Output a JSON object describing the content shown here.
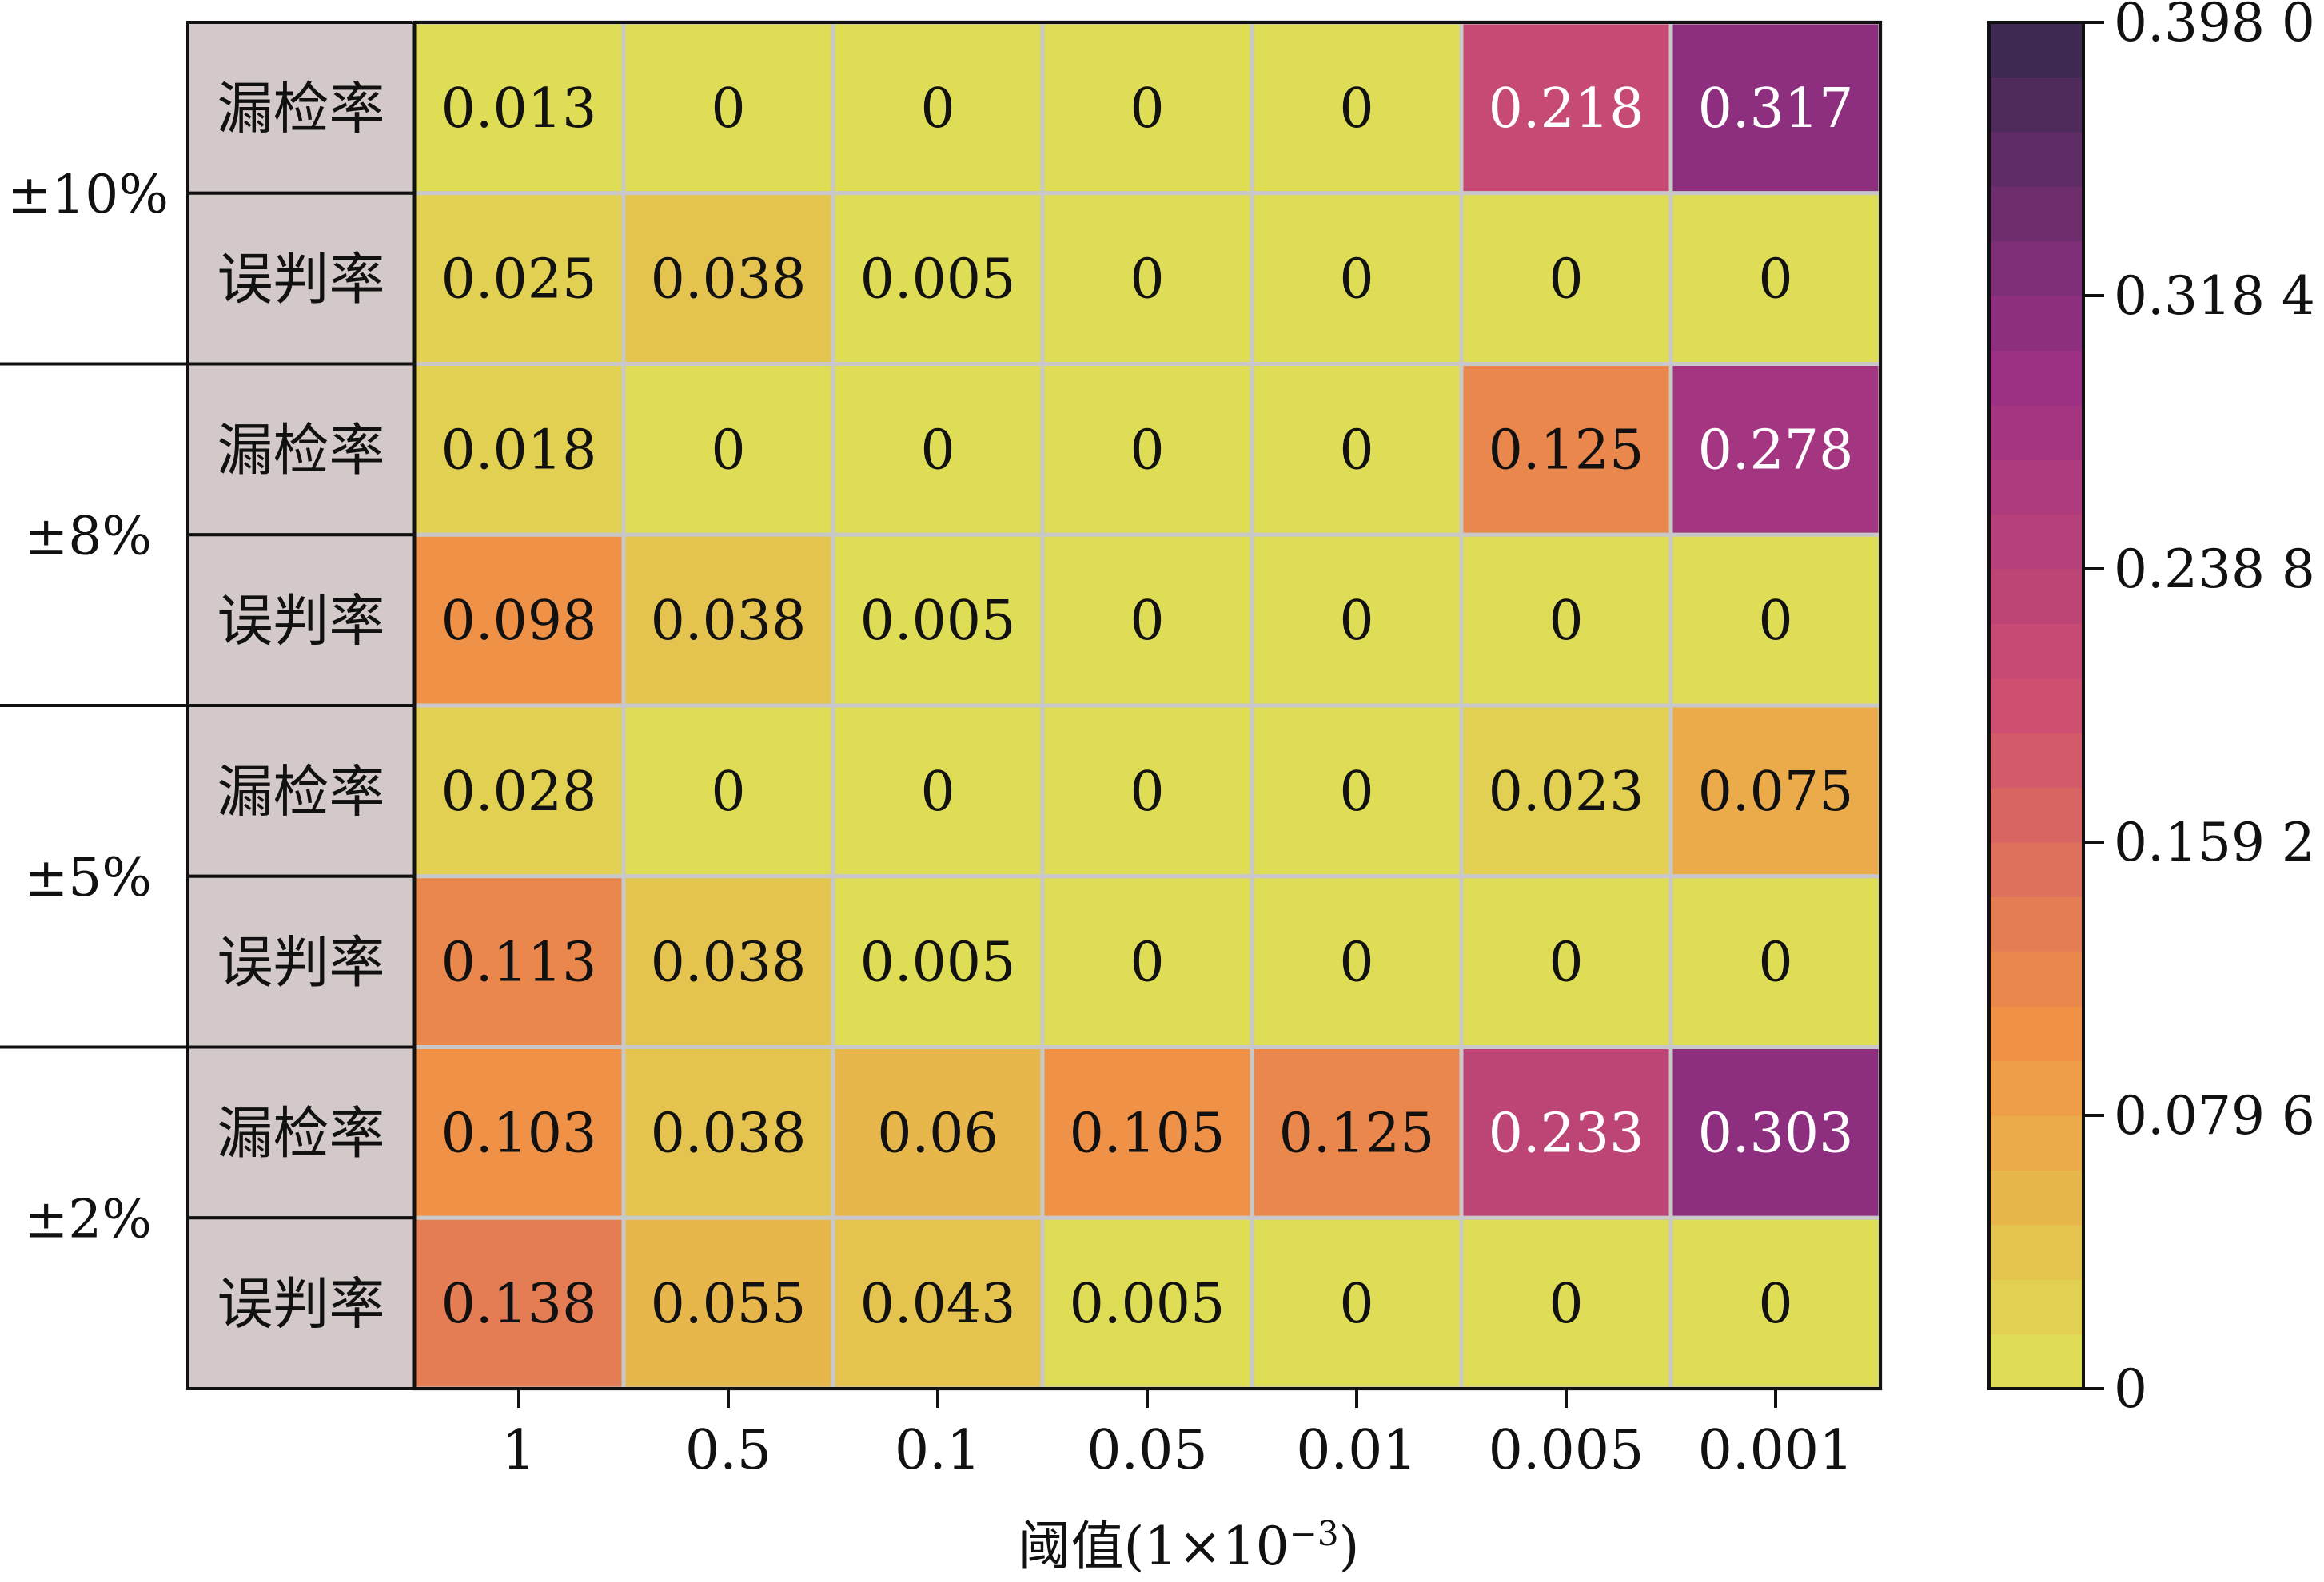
{
  "chart_data": {
    "type": "heatmap",
    "xlabel": "阈值(1×10",
    "xlabel_exp": "−3",
    "xlabel_close": ")",
    "x_categories": [
      "1",
      "0.5",
      "0.1",
      "0.05",
      "0.01",
      "0.005",
      "0.001"
    ],
    "groups": [
      "±10%",
      "±8%",
      "±5%",
      "±2%"
    ],
    "row_types": [
      "漏检率",
      "误判率"
    ],
    "rows": [
      {
        "group": "±10%",
        "type": "漏检率",
        "values": [
          0.013,
          0,
          0,
          0,
          0,
          0.218,
          0.317
        ],
        "labels": [
          "0.013",
          "0",
          "0",
          "0",
          "0",
          "0.218",
          "0.317"
        ]
      },
      {
        "group": "±10%",
        "type": "误判率",
        "values": [
          0.025,
          0.038,
          0.005,
          0,
          0,
          0,
          0
        ],
        "labels": [
          "0.025",
          "0.038",
          "0.005",
          "0",
          "0",
          "0",
          "0"
        ]
      },
      {
        "group": "±8%",
        "type": "漏检率",
        "values": [
          0.018,
          0,
          0,
          0,
          0,
          0.125,
          0.278
        ],
        "labels": [
          "0.018",
          "0",
          "0",
          "0",
          "0",
          "0.125",
          "0.278"
        ]
      },
      {
        "group": "±8%",
        "type": "误判率",
        "values": [
          0.098,
          0.038,
          0.005,
          0,
          0,
          0,
          0
        ],
        "labels": [
          "0.098",
          "0.038",
          "0.005",
          "0",
          "0",
          "0",
          "0"
        ]
      },
      {
        "group": "±5%",
        "type": "漏检率",
        "values": [
          0.028,
          0,
          0,
          0,
          0,
          0.023,
          0.075
        ],
        "labels": [
          "0.028",
          "0",
          "0",
          "0",
          "0",
          "0.023",
          "0.075"
        ]
      },
      {
        "group": "±5%",
        "type": "误判率",
        "values": [
          0.113,
          0.038,
          0.005,
          0,
          0,
          0,
          0
        ],
        "labels": [
          "0.113",
          "0.038",
          "0.005",
          "0",
          "0",
          "0",
          "0"
        ]
      },
      {
        "group": "±2%",
        "type": "漏检率",
        "values": [
          0.103,
          0.038,
          0.06,
          0.105,
          0.125,
          0.233,
          0.303
        ],
        "labels": [
          "0.103",
          "0.038",
          "0.06",
          "0.105",
          "0.125",
          "0.233",
          "0.303"
        ]
      },
      {
        "group": "±2%",
        "type": "误判率",
        "values": [
          0.138,
          0.055,
          0.043,
          0.005,
          0,
          0,
          0
        ],
        "labels": [
          "0.138",
          "0.055",
          "0.043",
          "0.005",
          "0",
          "0",
          "0"
        ]
      }
    ],
    "colorbar": {
      "min": 0,
      "max": 0.398,
      "levels": 25,
      "ticks": [
        0,
        0.0796,
        0.1592,
        0.2388,
        0.3184,
        0.398
      ],
      "tick_labels": [
        "0",
        "0.079 6",
        "0.159 2",
        "0.238 8",
        "0.318 4",
        "0.398 0"
      ],
      "colormap": [
        "#dee256",
        "#f09545",
        "#ce4f6f",
        "#9a2f85",
        "#372a4f"
      ]
    },
    "grid_line_color": "#c8c8c8",
    "row_label_bg": "#d3c9c9"
  }
}
